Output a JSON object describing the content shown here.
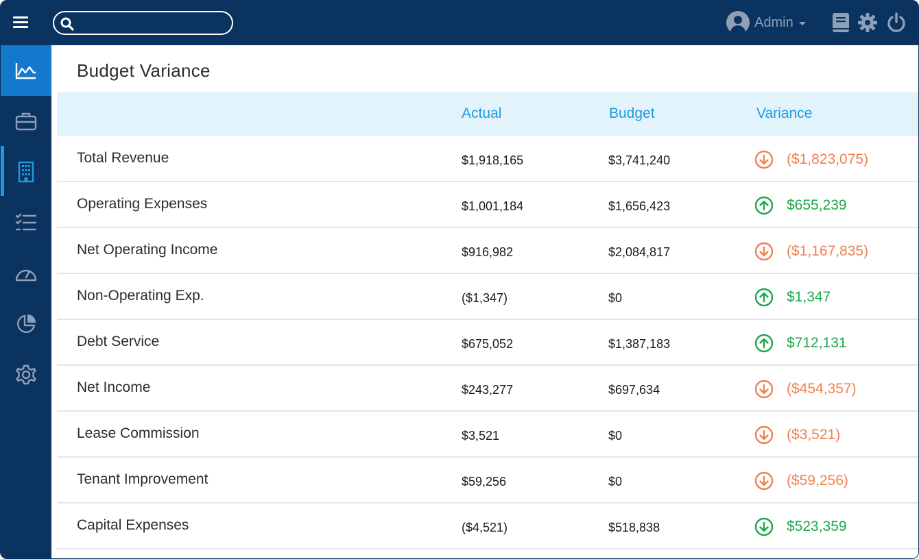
{
  "colors": {
    "navy": "#0b3360",
    "active_blue": "#1478cc",
    "accent_blue": "#1e9be0",
    "header_bg": "#e3f3fc",
    "positive": "#1aa84a",
    "negative": "#f08050",
    "muted": "#8fa0b6"
  },
  "topbar": {
    "menu_icon": "hamburger-icon",
    "search": {
      "value": "",
      "placeholder": ""
    },
    "user_name": "Admin",
    "icons": [
      "book-icon",
      "gear-icon",
      "power-icon"
    ]
  },
  "sidebar": {
    "items": [
      {
        "icon": "area-chart-icon",
        "active": true
      },
      {
        "icon": "briefcase-icon",
        "active": false
      },
      {
        "icon": "building-icon",
        "active": false,
        "marked": true
      },
      {
        "icon": "checklist-icon",
        "active": false
      },
      {
        "icon": "speedometer-icon",
        "active": false
      },
      {
        "icon": "pie-chart-icon",
        "active": false
      },
      {
        "icon": "settings-icon",
        "active": false
      }
    ]
  },
  "page": {
    "title": "Budget Variance",
    "columns": {
      "actual": "Actual",
      "budget": "Budget",
      "variance": "Variance"
    },
    "rows": [
      {
        "label": "Total Revenue",
        "actual": "$1,918,165",
        "budget": "$3,741,240",
        "variance": "($1,823,075)",
        "direction": "down",
        "status": "negative"
      },
      {
        "label": "Operating Expenses",
        "actual": "$1,001,184",
        "budget": "$1,656,423",
        "variance": "$655,239",
        "direction": "up",
        "status": "positive"
      },
      {
        "label": "Net Operating Income",
        "actual": "$916,982",
        "budget": "$2,084,817",
        "variance": "($1,167,835)",
        "direction": "down",
        "status": "negative"
      },
      {
        "label": "Non-Operating Exp.",
        "actual": "($1,347)",
        "budget": "$0",
        "variance": "$1,347",
        "direction": "up",
        "status": "positive"
      },
      {
        "label": "Debt Service",
        "actual": "$675,052",
        "budget": "$1,387,183",
        "variance": "$712,131",
        "direction": "up",
        "status": "positive"
      },
      {
        "label": "Net Income",
        "actual": "$243,277",
        "budget": "$697,634",
        "variance": "($454,357)",
        "direction": "down",
        "status": "negative"
      },
      {
        "label": "Lease Commission",
        "actual": "$3,521",
        "budget": "$0",
        "variance": "($3,521)",
        "direction": "down",
        "status": "negative"
      },
      {
        "label": "Tenant Improvement",
        "actual": "$59,256",
        "budget": "$0",
        "variance": "($59,256)",
        "direction": "down",
        "status": "negative"
      },
      {
        "label": "Capital Expenses",
        "actual": "($4,521)",
        "budget": "$518,838",
        "variance": "$523,359",
        "direction": "down",
        "status": "positive"
      }
    ]
  }
}
